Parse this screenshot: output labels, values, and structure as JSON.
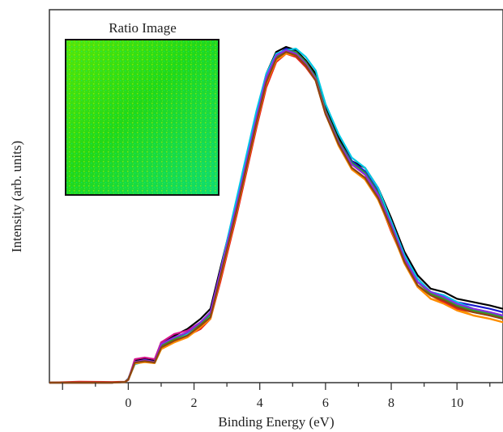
{
  "chart_data": {
    "type": "line",
    "xlabel": "Binding Energy (eV)",
    "ylabel": "Intensity (arb. units)",
    "xlim": [
      -2.4,
      11.4
    ],
    "ylim": [
      0,
      1.0
    ],
    "x_ticks": [
      0,
      2,
      4,
      6,
      8,
      10
    ],
    "x_tick_labels": [
      "0",
      "2",
      "4",
      "6",
      "8",
      "10"
    ],
    "inset": {
      "title": "Ratio Image",
      "colormap": [
        "#00d21e",
        "#44e60a",
        "#a9f005",
        "#19e6a0"
      ]
    },
    "x": [
      -2.4,
      -1.5,
      -0.5,
      -0.1,
      0,
      0.2,
      0.5,
      0.8,
      1.0,
      1.4,
      1.8,
      2.2,
      2.5,
      2.8,
      3.0,
      3.3,
      3.6,
      3.9,
      4.2,
      4.5,
      4.8,
      5.1,
      5.4,
      5.7,
      6.0,
      6.4,
      6.8,
      7.2,
      7.6,
      8.0,
      8.4,
      8.8,
      9.2,
      9.6,
      10.0,
      10.5,
      11.0,
      11.4
    ],
    "series": [
      {
        "color": "#000000",
        "values": [
          0,
          0,
          0,
          0.002,
          0.01,
          0.065,
          0.07,
          0.065,
          0.12,
          0.14,
          0.16,
          0.19,
          0.22,
          0.34,
          0.42,
          0.54,
          0.67,
          0.8,
          0.92,
          0.985,
          1.0,
          0.99,
          0.96,
          0.92,
          0.82,
          0.73,
          0.66,
          0.64,
          0.58,
          0.49,
          0.39,
          0.32,
          0.28,
          0.27,
          0.25,
          0.24,
          0.23,
          0.22
        ]
      },
      {
        "color": "#1a1acc",
        "values": [
          0,
          0,
          0,
          0.002,
          0.012,
          0.06,
          0.068,
          0.062,
          0.11,
          0.13,
          0.15,
          0.18,
          0.21,
          0.33,
          0.41,
          0.53,
          0.66,
          0.79,
          0.91,
          0.975,
          0.995,
          0.985,
          0.955,
          0.91,
          0.81,
          0.72,
          0.66,
          0.63,
          0.57,
          0.48,
          0.38,
          0.31,
          0.27,
          0.26,
          0.24,
          0.23,
          0.22,
          0.21
        ]
      },
      {
        "color": "#d4148c",
        "values": [
          0,
          0,
          0,
          0.002,
          0.008,
          0.07,
          0.075,
          0.07,
          0.12,
          0.145,
          0.155,
          0.18,
          0.2,
          0.32,
          0.4,
          0.52,
          0.65,
          0.78,
          0.9,
          0.97,
          0.99,
          0.98,
          0.95,
          0.9,
          0.8,
          0.71,
          0.65,
          0.62,
          0.56,
          0.47,
          0.37,
          0.3,
          0.27,
          0.25,
          0.23,
          0.22,
          0.21,
          0.2
        ]
      },
      {
        "color": "#00c8e6",
        "values": [
          0,
          0,
          0,
          0.002,
          0.01,
          0.055,
          0.063,
          0.058,
          0.1,
          0.125,
          0.145,
          0.17,
          0.2,
          0.33,
          0.42,
          0.55,
          0.68,
          0.81,
          0.92,
          0.98,
          0.99,
          0.995,
          0.97,
          0.93,
          0.83,
          0.74,
          0.67,
          0.64,
          0.58,
          0.48,
          0.38,
          0.31,
          0.27,
          0.26,
          0.24,
          0.22,
          0.21,
          0.2
        ]
      },
      {
        "color": "#e6b400",
        "values": [
          0,
          0,
          0,
          0.002,
          0.009,
          0.058,
          0.062,
          0.06,
          0.1,
          0.12,
          0.14,
          0.17,
          0.19,
          0.31,
          0.39,
          0.51,
          0.64,
          0.77,
          0.89,
          0.96,
          0.985,
          0.975,
          0.945,
          0.9,
          0.8,
          0.71,
          0.64,
          0.61,
          0.55,
          0.46,
          0.36,
          0.29,
          0.25,
          0.24,
          0.22,
          0.2,
          0.19,
          0.18
        ]
      },
      {
        "color": "#e61e1e",
        "values": [
          0,
          0.003,
          0.002,
          0.003,
          0.01,
          0.06,
          0.065,
          0.06,
          0.105,
          0.125,
          0.14,
          0.16,
          0.19,
          0.3,
          0.38,
          0.5,
          0.63,
          0.76,
          0.88,
          0.955,
          0.98,
          0.97,
          0.94,
          0.9,
          0.8,
          0.71,
          0.64,
          0.61,
          0.55,
          0.45,
          0.36,
          0.29,
          0.26,
          0.24,
          0.22,
          0.21,
          0.2,
          0.19
        ]
      },
      {
        "color": "#2ca02c",
        "values": [
          0,
          0,
          0,
          0.002,
          0.011,
          0.06,
          0.066,
          0.06,
          0.11,
          0.13,
          0.15,
          0.175,
          0.205,
          0.325,
          0.405,
          0.525,
          0.655,
          0.785,
          0.905,
          0.97,
          0.99,
          0.985,
          0.955,
          0.91,
          0.81,
          0.72,
          0.655,
          0.625,
          0.565,
          0.47,
          0.37,
          0.3,
          0.265,
          0.25,
          0.23,
          0.215,
          0.205,
          0.195
        ]
      },
      {
        "color": "#8a2be2",
        "values": [
          0,
          0,
          0,
          0.002,
          0.01,
          0.062,
          0.067,
          0.062,
          0.115,
          0.135,
          0.15,
          0.18,
          0.21,
          0.33,
          0.41,
          0.53,
          0.66,
          0.79,
          0.91,
          0.975,
          0.99,
          0.98,
          0.95,
          0.905,
          0.805,
          0.715,
          0.65,
          0.62,
          0.56,
          0.47,
          0.37,
          0.3,
          0.27,
          0.255,
          0.235,
          0.22,
          0.21,
          0.2
        ]
      },
      {
        "color": "#ff8c00",
        "values": [
          0,
          0,
          0,
          0.002,
          0.009,
          0.057,
          0.061,
          0.058,
          0.1,
          0.12,
          0.135,
          0.165,
          0.19,
          0.31,
          0.39,
          0.51,
          0.64,
          0.77,
          0.89,
          0.96,
          0.98,
          0.975,
          0.945,
          0.9,
          0.8,
          0.705,
          0.635,
          0.605,
          0.545,
          0.455,
          0.355,
          0.285,
          0.25,
          0.235,
          0.215,
          0.2,
          0.19,
          0.18
        ]
      },
      {
        "color": "#8b4513",
        "values": [
          0,
          0,
          0,
          0.002,
          0.009,
          0.06,
          0.064,
          0.06,
          0.105,
          0.125,
          0.14,
          0.17,
          0.195,
          0.315,
          0.395,
          0.515,
          0.645,
          0.775,
          0.895,
          0.965,
          0.985,
          0.975,
          0.945,
          0.9,
          0.8,
          0.71,
          0.64,
          0.61,
          0.55,
          0.46,
          0.36,
          0.29,
          0.26,
          0.245,
          0.225,
          0.21,
          0.2,
          0.19
        ]
      }
    ]
  }
}
